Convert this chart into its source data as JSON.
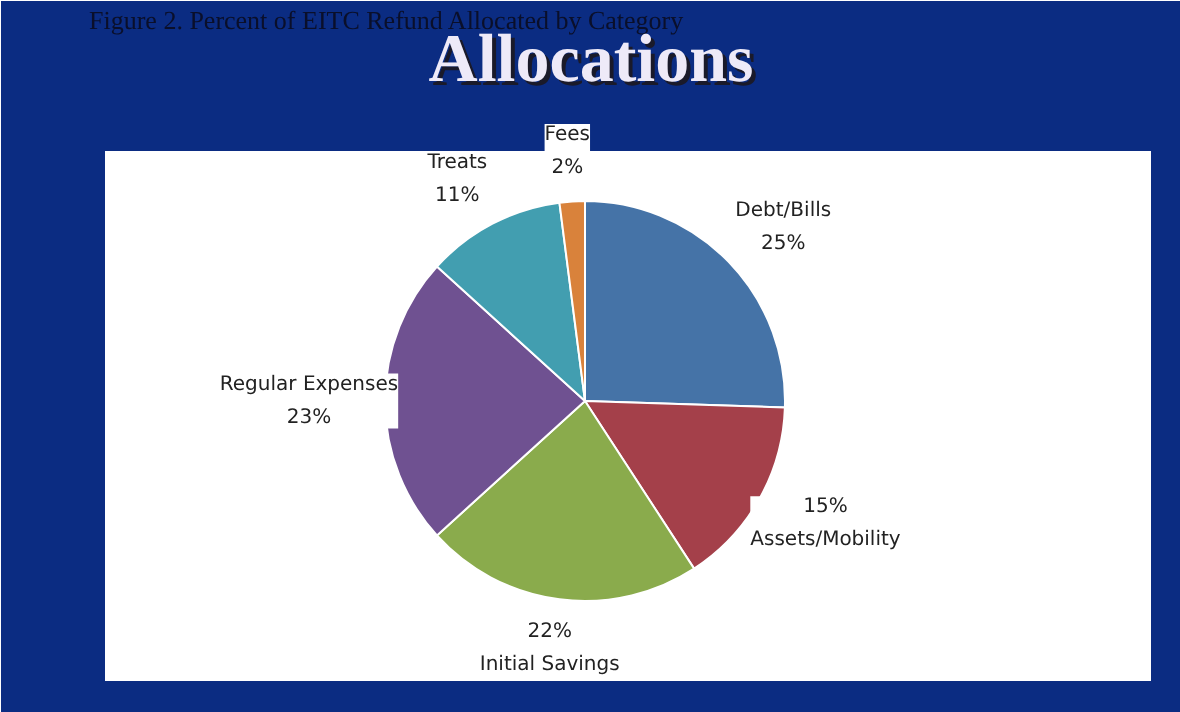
{
  "chart_data": {
    "type": "pie",
    "title": "Allocations",
    "subtitle": "Figure 2. Percent of EITC Refund Allocated by Category",
    "categories": [
      "Debt/Bills",
      "Assets/Mobility",
      "Initial Savings",
      "Regular Expenses",
      "Treats",
      "Fees"
    ],
    "values": [
      25,
      15,
      22,
      23,
      11,
      2
    ],
    "value_labels": [
      "25%",
      "15%",
      "22%",
      "23%",
      "11%",
      "2%"
    ],
    "colors": [
      "#4573a7",
      "#a4404a",
      "#8aab4c",
      "#6f5191",
      "#429eb0",
      "#d9823b"
    ]
  }
}
